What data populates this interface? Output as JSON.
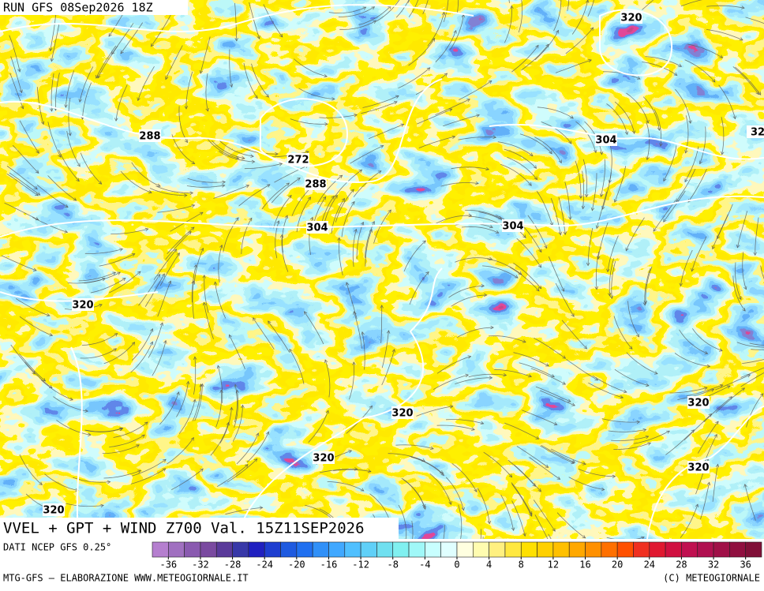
{
  "header": {
    "run": "RUN GFS 08Sep2026 18Z"
  },
  "map": {
    "title": "VVEL + GPT + WIND Z700 Val. 15Z11SEP2026",
    "contour_labels": [
      "320",
      "288",
      "272",
      "288",
      "304",
      "32",
      "304",
      "304",
      "320",
      "320",
      "320",
      "320",
      "320",
      "320"
    ]
  },
  "colorbar": {
    "source": "DATI NCEP GFS 0.25°",
    "range": [
      -38,
      38
    ],
    "ticks": [
      -36,
      -32,
      -28,
      -24,
      -20,
      -16,
      -12,
      -8,
      -4,
      0,
      4,
      8,
      12,
      16,
      20,
      24,
      28,
      32,
      36
    ],
    "colors": [
      "#b57fcf",
      "#a070c0",
      "#8a5ab0",
      "#7a4aa0",
      "#5a3a9a",
      "#3838a8",
      "#2020c0",
      "#1e3ed0",
      "#1e5ae0",
      "#2070f0",
      "#3090f8",
      "#40a8ff",
      "#50c0ff",
      "#60d0f8",
      "#70e0f0",
      "#80f0f0",
      "#a0f8f8",
      "#c8ffff",
      "#e0ffff",
      "#ffffe0",
      "#fffcb0",
      "#fff080",
      "#ffe840",
      "#ffe000",
      "#ffd000",
      "#ffc000",
      "#ffa800",
      "#ff9000",
      "#ff7000",
      "#ff5000",
      "#f03020",
      "#e01830",
      "#d01040",
      "#c01050",
      "#b01050",
      "#a01048",
      "#901040",
      "#801038"
    ]
  },
  "footer": {
    "left": "MTG-GFS — ELABORAZIONE WWW.METEOGIORNALE.IT",
    "right": "(C) METEOGIORNALE"
  }
}
